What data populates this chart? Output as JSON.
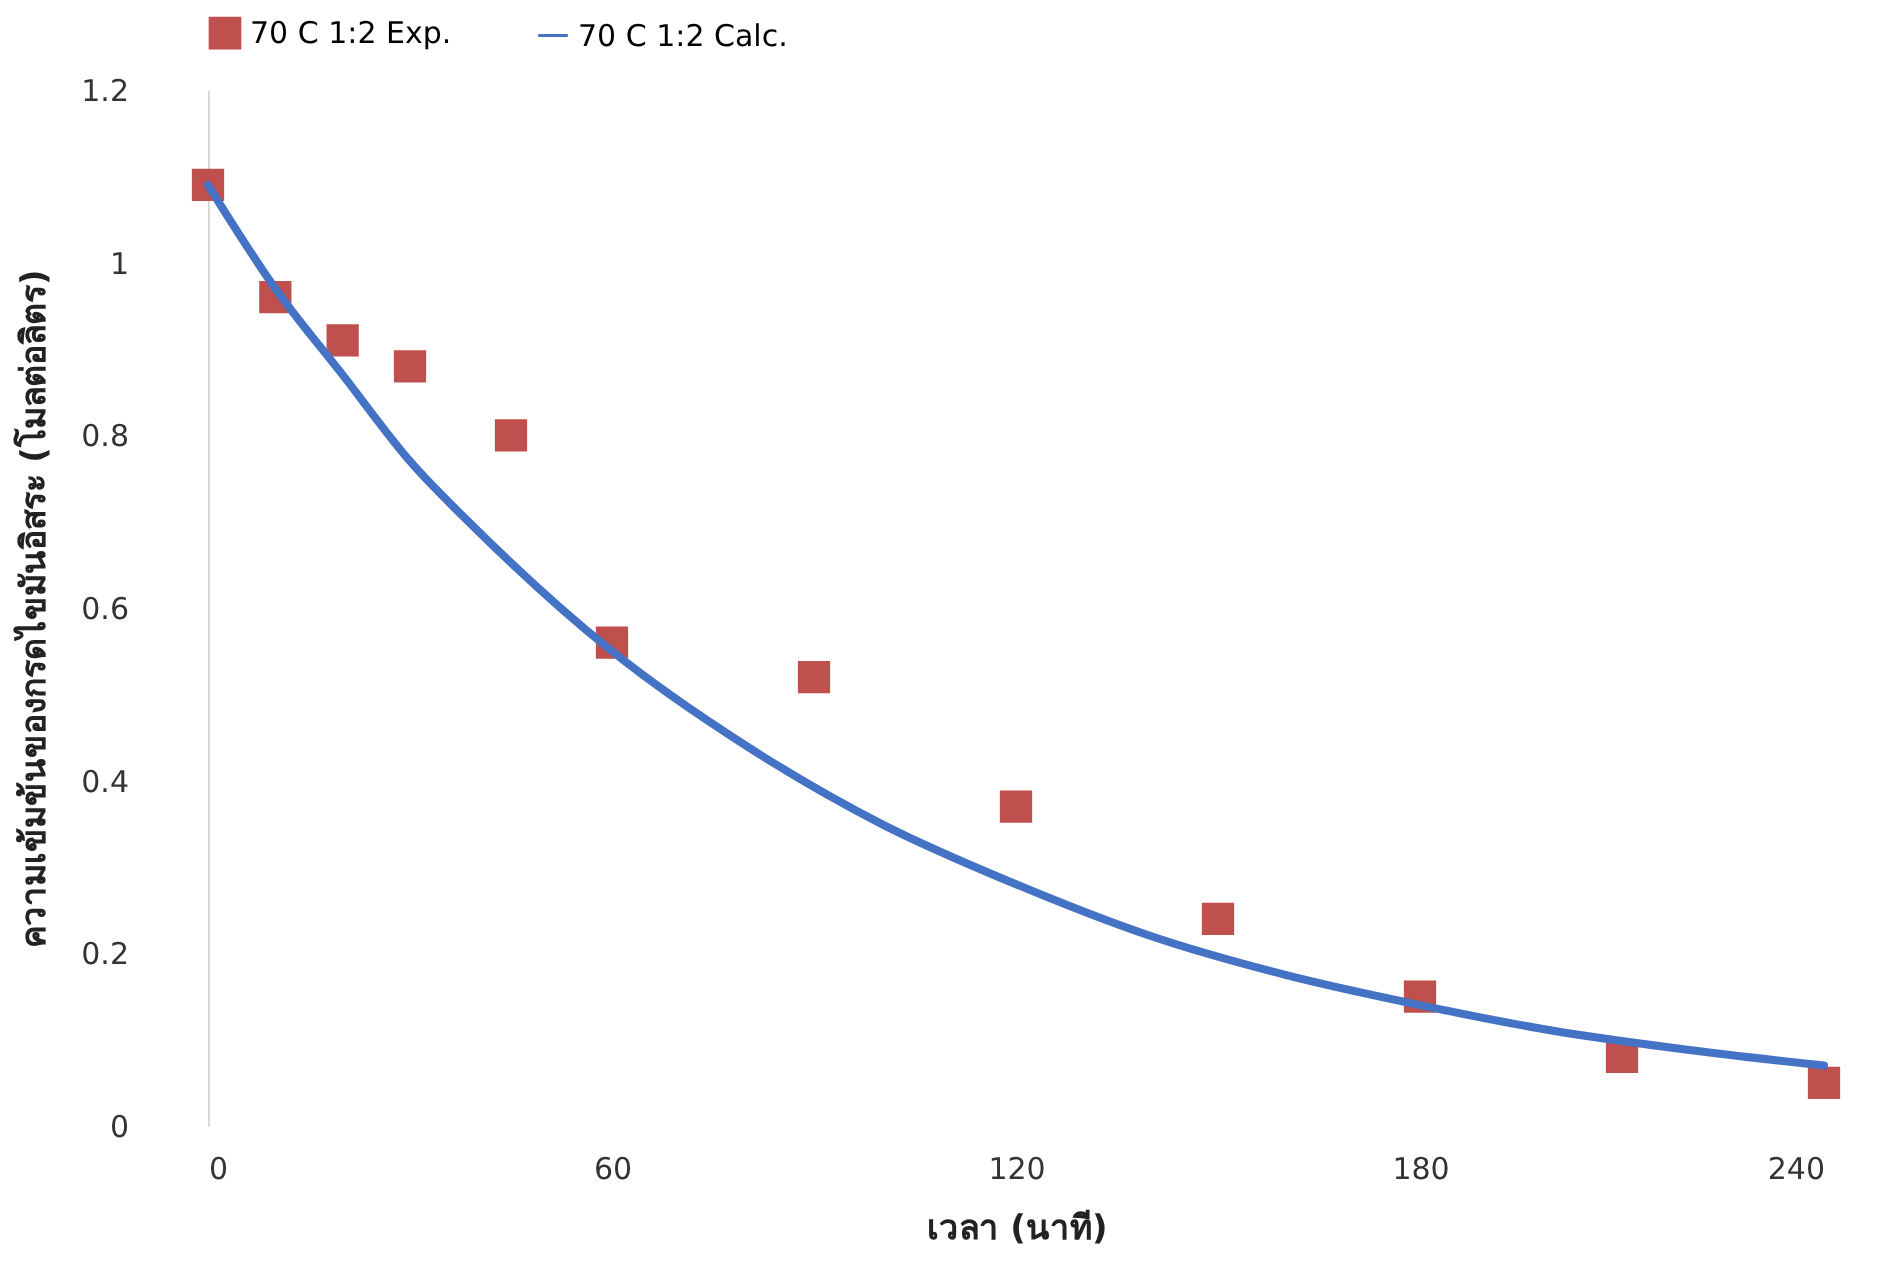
{
  "chart_data": {
    "type": "scatter",
    "xlabel": "เวลา (นาที)",
    "ylabel": "ความเข้มข้นของกรดไขมันอิสระ (โมลต่อลิตร)",
    "xlim": [
      0,
      240
    ],
    "xticks": [
      0,
      60,
      120,
      180,
      240
    ],
    "ylim": [
      0,
      1.2
    ],
    "yticks": [
      {
        "value": 0,
        "label": "0"
      },
      0.2,
      0.4,
      0.6,
      0.8,
      {
        "value": 1,
        "label": "1"
      },
      1.2
    ],
    "grid": false,
    "legend": "top",
    "series": [
      {
        "name": "70 C 1:2 Exp.",
        "color": "#c0504d",
        "marker": "square",
        "x": [
          0,
          10,
          20,
          30,
          45,
          60,
          90,
          120,
          150,
          180,
          210,
          240
        ],
        "values": [
          1.09,
          0.96,
          0.91,
          0.88,
          0.8,
          0.56,
          0.52,
          0.37,
          0.24,
          0.15,
          0.08,
          0.05
        ]
      },
      {
        "name": "70 C 1:2 Calc.",
        "type": "line",
        "color": "#4472c4",
        "line_style": "solid",
        "x": [
          0,
          10,
          20,
          30,
          40,
          60,
          80,
          100,
          120,
          140,
          160,
          180,
          200,
          220,
          240
        ],
        "values": [
          1.09,
          0.97,
          0.87,
          0.77,
          0.69,
          0.55,
          0.44,
          0.35,
          0.28,
          0.22,
          0.175,
          0.14,
          0.11,
          0.088,
          0.07
        ]
      }
    ]
  }
}
